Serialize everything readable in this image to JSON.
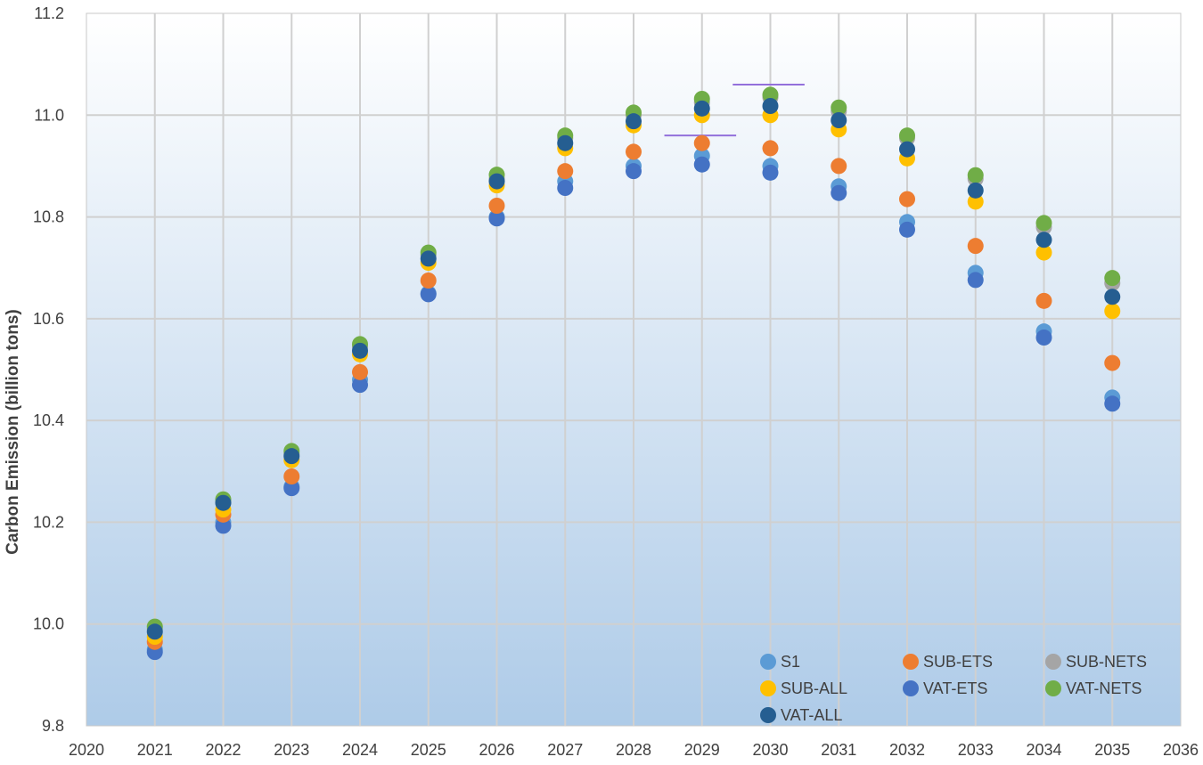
{
  "chart_data": {
    "type": "scatter",
    "title": "",
    "xlabel": "",
    "ylabel": "Carbon Emission (billion tons)",
    "xlim": [
      2020,
      2036
    ],
    "ylim": [
      9.8,
      11.2
    ],
    "x_ticks": [
      "2020",
      "2021",
      "2022",
      "2023",
      "2024",
      "2025",
      "2026",
      "2027",
      "2028",
      "2029",
      "2030",
      "2031",
      "2032",
      "2033",
      "2034",
      "2035",
      "2036"
    ],
    "y_ticks": [
      "9.8",
      "10.0",
      "10.2",
      "10.4",
      "10.6",
      "10.8",
      "11.0",
      "11.2"
    ],
    "grid": true,
    "legend_position": "bottom-right",
    "x": [
      2021,
      2022,
      2023,
      2024,
      2025,
      2026,
      2027,
      2028,
      2029,
      2030,
      2031,
      2032,
      2033,
      2034,
      2035
    ],
    "series": [
      {
        "name": "S1",
        "color": "#5b9bd5",
        "values": [
          9.95,
          10.2,
          10.27,
          10.48,
          10.65,
          10.8,
          10.87,
          10.9,
          10.92,
          10.9,
          10.86,
          10.79,
          10.69,
          10.575,
          10.445
        ]
      },
      {
        "name": "SUB-ETS",
        "color": "#ed7d31",
        "values": [
          9.965,
          10.215,
          10.29,
          10.495,
          10.675,
          10.822,
          10.89,
          10.928,
          10.945,
          10.935,
          10.9,
          10.835,
          10.743,
          10.635,
          10.513
        ]
      },
      {
        "name": "SUB-NETS",
        "color": "#a5a5a5",
        "values": [
          9.99,
          10.24,
          10.335,
          10.545,
          10.725,
          10.875,
          10.955,
          11.0,
          11.025,
          11.035,
          11.008,
          10.955,
          10.875,
          10.78,
          10.67
        ]
      },
      {
        "name": "SUB-ALL",
        "color": "#ffc000",
        "values": [
          9.975,
          10.225,
          10.322,
          10.53,
          10.71,
          10.862,
          10.935,
          10.98,
          11.0,
          11.0,
          10.972,
          10.915,
          10.83,
          10.73,
          10.615
        ]
      },
      {
        "name": "VAT-ETS",
        "color": "#4472c4",
        "values": [
          9.945,
          10.193,
          10.267,
          10.47,
          10.648,
          10.797,
          10.857,
          10.89,
          10.903,
          10.887,
          10.847,
          10.775,
          10.676,
          10.563,
          10.433
        ]
      },
      {
        "name": "VAT-NETS",
        "color": "#70ad47",
        "values": [
          9.995,
          10.245,
          10.34,
          10.55,
          10.73,
          10.883,
          10.96,
          11.005,
          11.032,
          11.04,
          11.015,
          10.96,
          10.882,
          10.788,
          10.68
        ]
      },
      {
        "name": "VAT-ALL",
        "color": "#255e91",
        "values": [
          9.985,
          10.238,
          10.33,
          10.537,
          10.718,
          10.87,
          10.945,
          10.988,
          11.013,
          11.018,
          10.99,
          10.933,
          10.852,
          10.755,
          10.643
        ]
      }
    ],
    "annotations": [
      {
        "type": "horizontal-segment",
        "x_start": 2028.45,
        "x_end": 2029.5,
        "y": 10.96,
        "color": "#9370db"
      },
      {
        "type": "horizontal-segment",
        "x_start": 2029.45,
        "x_end": 2030.5,
        "y": 11.06,
        "color": "#9370db"
      }
    ]
  }
}
